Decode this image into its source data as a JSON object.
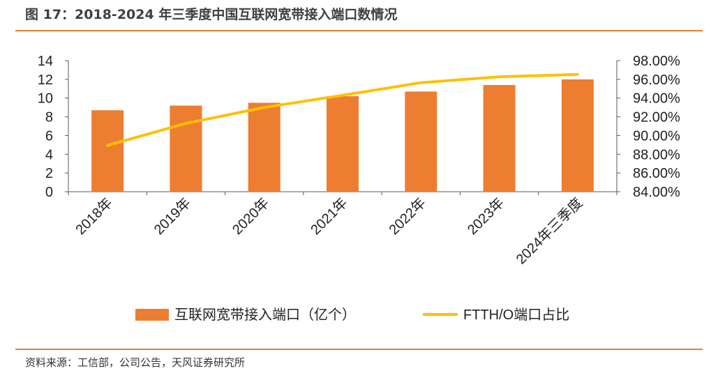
{
  "title": "图 17：2018-2024 年三季度中国互联网宽带接入端口数情况",
  "source": "资料来源：工信部，公司公告，天风证券研究所",
  "colors": {
    "bar": "#ed7d31",
    "line": "#ffc000",
    "rule": "#e87f2e",
    "axis": "#595959"
  },
  "chart_data": {
    "type": "bar",
    "categories": [
      "2018年",
      "2019年",
      "2020年",
      "2021年",
      "2022年",
      "2023年",
      "2024年三季度"
    ],
    "series": [
      {
        "name": "互联网宽带接入端口（亿个）",
        "type": "bar",
        "axis": "left",
        "values": [
          8.7,
          9.2,
          9.5,
          10.2,
          10.7,
          11.4,
          12.0
        ]
      },
      {
        "name": "FTTH/O端口占比",
        "type": "line",
        "axis": "right",
        "values": [
          0.8895,
          0.913,
          0.93,
          0.943,
          0.9565,
          0.9628,
          0.9653
        ]
      }
    ],
    "y_left": {
      "min": 0,
      "max": 14,
      "ticks": [
        "0",
        "2",
        "4",
        "6",
        "8",
        "10",
        "12",
        "14"
      ]
    },
    "y_right": {
      "min": 0.84,
      "max": 0.98,
      "ticks": [
        "84.00%",
        "86.00%",
        "88.00%",
        "90.00%",
        "92.00%",
        "94.00%",
        "96.00%",
        "98.00%"
      ]
    },
    "grid": false,
    "legend_position": "bottom"
  }
}
